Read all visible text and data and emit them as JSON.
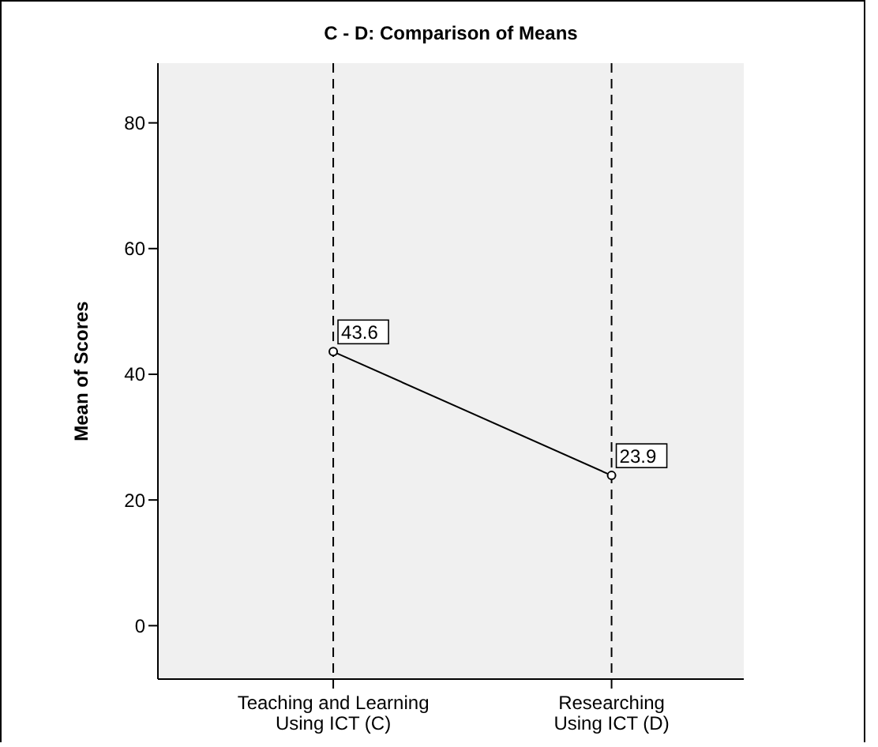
{
  "chart_data": {
    "type": "line",
    "title": "C - D: Comparison of Means",
    "ylabel": "Mean of Scores",
    "categories": [
      "Teaching and Learning Using ICT (C)",
      "Researching Using ICT (D)"
    ],
    "series": [
      {
        "color": "#000000",
        "values": [
          43.6,
          23.9
        ],
        "value_labels": [
          "43.6",
          "23.9"
        ]
      }
    ],
    "ylim": [
      -8.5,
      89.5
    ],
    "yticks": [
      0,
      20,
      40,
      60,
      80
    ],
    "grid": "x",
    "marker": "circle",
    "line_style": "solid",
    "legend": false
  }
}
